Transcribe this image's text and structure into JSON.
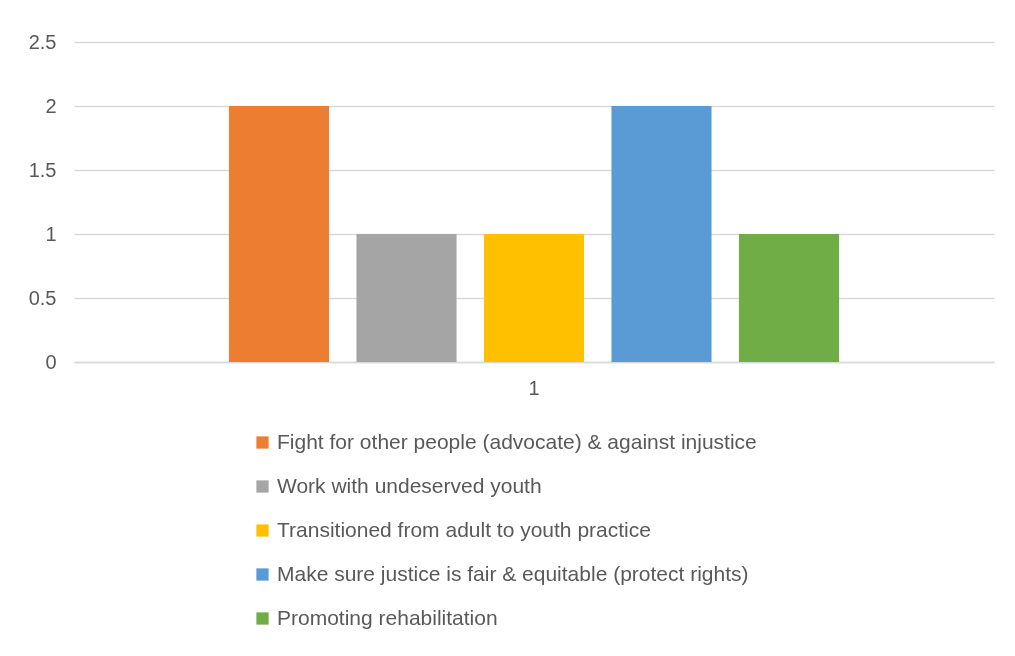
{
  "chart_data": {
    "type": "bar",
    "categories": [
      "1"
    ],
    "series": [
      {
        "name": "Fight for other people (advocate) & against injustice",
        "color": "#ed7d31",
        "values": [
          2
        ]
      },
      {
        "name": "Work with undeserved youth",
        "color": "#a5a5a5",
        "values": [
          1
        ]
      },
      {
        "name": "Transitioned from adult to youth practice",
        "color": "#ffc000",
        "values": [
          1
        ]
      },
      {
        "name": "Make sure justice is fair & equitable (protect rights)",
        "color": "#5b9bd5",
        "values": [
          2
        ]
      },
      {
        "name": "Promoting rehabilitation",
        "color": "#70ad47",
        "values": [
          1
        ]
      }
    ],
    "ylim": [
      0,
      2.5
    ],
    "yticks": [
      0,
      0.5,
      1,
      1.5,
      2,
      2.5
    ],
    "grid": "y",
    "legend": "bottom"
  }
}
